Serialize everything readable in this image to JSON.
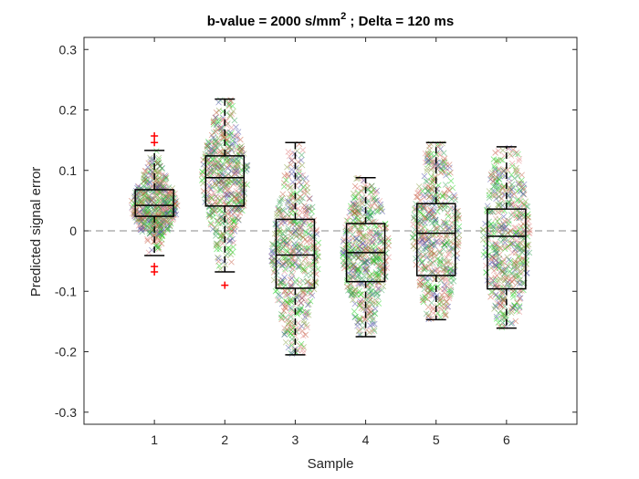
{
  "chart_data": {
    "type": "box",
    "title": {
      "main": "b-value = 2000 s/mm",
      "superscript": "2",
      "suffix": " ; Delta = 120 ms"
    },
    "xlabel": "Sample",
    "ylabel": "Predicted signal error",
    "xlim": [
      0,
      7
    ],
    "ylim": [
      -0.32,
      0.32
    ],
    "xticks": [
      1,
      2,
      3,
      4,
      5,
      6
    ],
    "xtick_labels": [
      "1",
      "2",
      "3",
      "4",
      "5",
      "6"
    ],
    "yticks": [
      -0.3,
      -0.2,
      -0.1,
      0,
      0.1,
      0.2,
      0.3
    ],
    "ytick_labels": [
      "-0.3",
      "-0.2",
      "-0.1",
      "0",
      "0.1",
      "0.2",
      "0.3"
    ],
    "reference_line": {
      "y": 0,
      "style": "dashed"
    },
    "grid": false,
    "scatter_colors": [
      "#1fd41f",
      "#c2563a",
      "#7f9a3a",
      "#4a4fa8",
      "#e07f7f",
      "#33a055"
    ],
    "boxes": [
      {
        "category": "1",
        "whisker_low": -0.041,
        "q1": 0.024,
        "median": 0.042,
        "q3": 0.068,
        "whisker_high": 0.133,
        "outliers": [
          -0.068,
          -0.059,
          0.146,
          0.157
        ]
      },
      {
        "category": "2",
        "whisker_low": -0.068,
        "q1": 0.041,
        "median": 0.088,
        "q3": 0.124,
        "whisker_high": 0.218,
        "outliers": [
          -0.09
        ]
      },
      {
        "category": "3",
        "whisker_low": -0.205,
        "q1": -0.095,
        "median": -0.04,
        "q3": 0.019,
        "whisker_high": 0.146,
        "outliers": []
      },
      {
        "category": "4",
        "whisker_low": -0.175,
        "q1": -0.084,
        "median": -0.036,
        "q3": 0.012,
        "whisker_high": 0.088,
        "outliers": []
      },
      {
        "category": "5",
        "whisker_low": -0.147,
        "q1": -0.074,
        "median": -0.004,
        "q3": 0.045,
        "whisker_high": 0.146,
        "outliers": []
      },
      {
        "category": "6",
        "whisker_low": -0.161,
        "q1": -0.096,
        "median": -0.009,
        "q3": 0.036,
        "whisker_high": 0.139,
        "outliers": []
      }
    ]
  }
}
